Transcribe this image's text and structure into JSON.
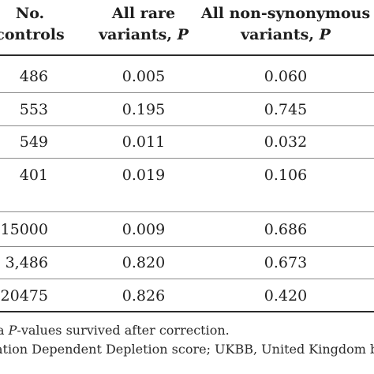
{
  "header": {
    "col1_line1": "No.",
    "col1_line2": "controls",
    "col2_line1": "All rare",
    "col2_line2_text": "variants, ",
    "col2_line2_p": "P",
    "col3_line1": "All non-synonymous",
    "col3_line2_text": "variants, ",
    "col3_line2_p": "P"
  },
  "rows": [
    {
      "controls": "486",
      "rare": "0.005",
      "nonsyn": "0.060"
    },
    {
      "controls": "553",
      "rare": "0.195",
      "nonsyn": "0.745"
    },
    {
      "controls": "549",
      "rare": "0.011",
      "nonsyn": "0.032"
    },
    {
      "controls": "401",
      "rare": "0.019",
      "nonsyn": "0.106"
    },
    {
      "controls": "15000",
      "rare": "0.009",
      "nonsyn": "0.686"
    },
    {
      "controls": "3,486",
      "rare": "0.820",
      "nonsyn": "0.673"
    },
    {
      "controls": "20475",
      "rare": "0.826",
      "nonsyn": "0.420"
    }
  ],
  "footnotes": {
    "line1_marker": "a",
    "line1_italic": "P",
    "line1_text": "-values survived after correction.",
    "line2_text": "ation Dependent Depletion score; UKBB, United Kingdom bio"
  }
}
